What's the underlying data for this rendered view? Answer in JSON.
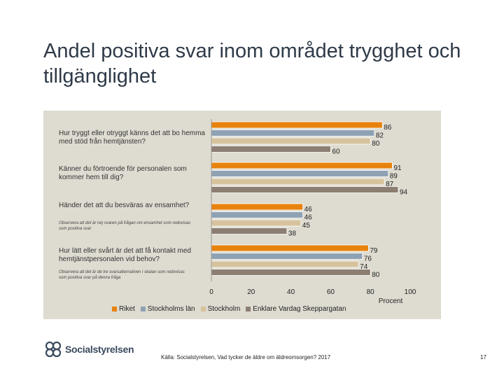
{
  "slide": {
    "title": "Andel positiva svar inom området trygghet och tillgänglighet",
    "source": "Källa: Socialstyrelsen, Vad tycker de äldre om äldreomsorgen? 2017",
    "page_number": "17",
    "logo_text": "Socialstyrelsen"
  },
  "chart_data": {
    "type": "bar",
    "orientation": "horizontal",
    "xlabel": "Procent",
    "xlim": [
      0,
      100
    ],
    "xticks": [
      "0",
      "20",
      "40",
      "60",
      "80",
      "100"
    ],
    "categories": [
      "Hur tryggt eller otryggt känns det att bo hemma med stöd från hemtjänsten?",
      "Känner du förtroende för personalen som kommer hem till dig?",
      "Händer det att du besväras av ensamhet?",
      "Hur lätt eller svårt är det att få kontakt med hemtjänstpersonalen vid behov?"
    ],
    "notes": [
      "",
      "",
      "Observera att det är nej svaren på frågan om ensamhet som redovisas som positiva svar",
      "Observera att det är de tre svarsalternativen i skalan som redovisas som positiva svar på denna fråga"
    ],
    "series": [
      {
        "name": "Riket",
        "color": "#e8820e",
        "values": [
          86,
          91,
          46,
          79
        ]
      },
      {
        "name": "Stockholms län",
        "color": "#8fa2b3",
        "values": [
          82,
          89,
          46,
          76
        ]
      },
      {
        "name": "Stockholm",
        "color": "#d6c39e",
        "values": [
          80,
          87,
          45,
          74
        ]
      },
      {
        "name": "Enklare Vardag Skeppargatan",
        "color": "#8c7e72",
        "values": [
          60,
          94,
          38,
          80
        ]
      }
    ]
  }
}
